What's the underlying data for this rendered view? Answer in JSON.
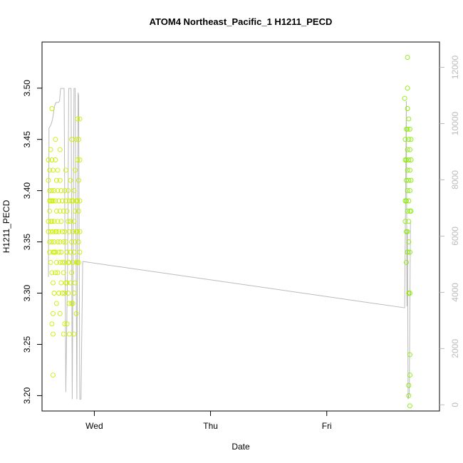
{
  "chart_data": {
    "type": "scatter",
    "title": "ATOM4 Northeast_Pacific_1 H1211_PECD",
    "xlabel": "Date",
    "ylabel": "H1211_PECD",
    "x_unit": "days since Tuesday 00:00",
    "xlim": [
      1.55,
      4.97
    ],
    "x_ticks": [
      {
        "value": 2,
        "label": "Wed"
      },
      {
        "value": 3,
        "label": "Thu"
      },
      {
        "value": 4,
        "label": "Fri"
      }
    ],
    "ylim": [
      3.185,
      3.545
    ],
    "y_ticks": [
      3.2,
      3.25,
      3.3,
      3.35,
      3.4,
      3.45,
      3.5
    ],
    "y_tick_labels": [
      "3.20",
      "3.25",
      "3.30",
      "3.35",
      "3.40",
      "3.45",
      "3.50"
    ],
    "y2_lim": [
      -220,
      12900
    ],
    "y2_ticks": [
      0,
      2000,
      4000,
      6000,
      8000,
      10000,
      12000
    ],
    "y2_tick_labels": [
      "0",
      "2000",
      "4000",
      "6000",
      "8000",
      "10000",
      "12000"
    ],
    "colors": {
      "group1_points": "#ccee00",
      "group2_points": "#88ee00",
      "altitude_line": "#bbbbbb",
      "frame": "#000000"
    },
    "series": [
      {
        "marker": "open-circle",
        "points": [
          [
            1.605,
            3.43
          ],
          [
            1.605,
            3.41
          ],
          [
            1.605,
            3.37
          ],
          [
            1.605,
            3.36
          ],
          [
            1.615,
            3.42
          ],
          [
            1.615,
            3.4
          ],
          [
            1.615,
            3.39
          ],
          [
            1.615,
            3.38
          ],
          [
            1.615,
            3.35
          ],
          [
            1.615,
            3.34
          ],
          [
            1.625,
            3.44
          ],
          [
            1.625,
            3.39
          ],
          [
            1.625,
            3.37
          ],
          [
            1.625,
            3.36
          ],
          [
            1.625,
            3.33
          ],
          [
            1.635,
            3.48
          ],
          [
            1.635,
            3.43
          ],
          [
            1.635,
            3.4
          ],
          [
            1.635,
            3.39
          ],
          [
            1.635,
            3.37
          ],
          [
            1.635,
            3.35
          ],
          [
            1.635,
            3.32
          ],
          [
            1.635,
            3.27
          ],
          [
            1.645,
            3.42
          ],
          [
            1.645,
            3.39
          ],
          [
            1.645,
            3.36
          ],
          [
            1.645,
            3.34
          ],
          [
            1.645,
            3.31
          ],
          [
            1.645,
            3.28
          ],
          [
            1.645,
            3.26
          ],
          [
            1.645,
            3.22
          ],
          [
            1.655,
            3.4
          ],
          [
            1.655,
            3.37
          ],
          [
            1.655,
            3.35
          ],
          [
            1.655,
            3.34
          ],
          [
            1.655,
            3.3
          ],
          [
            1.665,
            3.45
          ],
          [
            1.665,
            3.43
          ],
          [
            1.665,
            3.39
          ],
          [
            1.665,
            3.36
          ],
          [
            1.665,
            3.34
          ],
          [
            1.665,
            3.32
          ],
          [
            1.675,
            3.41
          ],
          [
            1.675,
            3.38
          ],
          [
            1.675,
            3.36
          ],
          [
            1.675,
            3.33
          ],
          [
            1.675,
            3.29
          ],
          [
            1.685,
            3.42
          ],
          [
            1.685,
            3.4
          ],
          [
            1.685,
            3.37
          ],
          [
            1.685,
            3.35
          ],
          [
            1.685,
            3.32
          ],
          [
            1.695,
            3.39
          ],
          [
            1.695,
            3.36
          ],
          [
            1.695,
            3.34
          ],
          [
            1.695,
            3.3
          ],
          [
            1.705,
            3.44
          ],
          [
            1.705,
            3.41
          ],
          [
            1.705,
            3.38
          ],
          [
            1.705,
            3.35
          ],
          [
            1.705,
            3.33
          ],
          [
            1.705,
            3.28
          ],
          [
            1.715,
            3.4
          ],
          [
            1.715,
            3.37
          ],
          [
            1.715,
            3.34
          ],
          [
            1.715,
            3.31
          ],
          [
            1.725,
            3.39
          ],
          [
            1.725,
            3.36
          ],
          [
            1.725,
            3.33
          ],
          [
            1.725,
            3.3
          ],
          [
            1.735,
            3.38
          ],
          [
            1.735,
            3.35
          ],
          [
            1.735,
            3.32
          ],
          [
            1.735,
            3.26
          ],
          [
            1.745,
            3.4
          ],
          [
            1.745,
            3.36
          ],
          [
            1.745,
            3.33
          ],
          [
            1.745,
            3.3
          ],
          [
            1.745,
            3.27
          ],
          [
            1.755,
            3.42
          ],
          [
            1.755,
            3.39
          ],
          [
            1.755,
            3.35
          ],
          [
            1.755,
            3.31
          ],
          [
            1.765,
            3.38
          ],
          [
            1.765,
            3.34
          ],
          [
            1.765,
            3.31
          ],
          [
            1.765,
            3.27
          ],
          [
            1.775,
            3.4
          ],
          [
            1.775,
            3.37
          ],
          [
            1.775,
            3.33
          ],
          [
            1.775,
            3.3
          ],
          [
            1.785,
            3.39
          ],
          [
            1.785,
            3.36
          ],
          [
            1.785,
            3.33
          ],
          [
            1.785,
            3.29
          ],
          [
            1.785,
            3.26
          ],
          [
            1.795,
            3.41
          ],
          [
            1.795,
            3.37
          ],
          [
            1.795,
            3.34
          ],
          [
            1.795,
            3.31
          ],
          [
            1.805,
            3.45
          ],
          [
            1.805,
            3.39
          ],
          [
            1.805,
            3.35
          ],
          [
            1.805,
            3.32
          ],
          [
            1.805,
            3.29
          ],
          [
            1.815,
            3.39
          ],
          [
            1.815,
            3.36
          ],
          [
            1.815,
            3.33
          ],
          [
            1.815,
            3.29
          ],
          [
            1.825,
            3.4
          ],
          [
            1.825,
            3.37
          ],
          [
            1.825,
            3.34
          ],
          [
            1.825,
            3.3
          ],
          [
            1.825,
            3.26
          ],
          [
            1.835,
            3.42
          ],
          [
            1.835,
            3.38
          ],
          [
            1.835,
            3.35
          ],
          [
            1.835,
            3.31
          ],
          [
            1.845,
            3.45
          ],
          [
            1.845,
            3.39
          ],
          [
            1.845,
            3.36
          ],
          [
            1.845,
            3.33
          ],
          [
            1.845,
            3.28
          ],
          [
            1.855,
            3.47
          ],
          [
            1.855,
            3.43
          ],
          [
            1.855,
            3.39
          ],
          [
            1.855,
            3.36
          ],
          [
            1.855,
            3.33
          ],
          [
            1.865,
            3.45
          ],
          [
            1.865,
            3.41
          ],
          [
            1.865,
            3.38
          ],
          [
            1.865,
            3.35
          ],
          [
            1.865,
            3.33
          ],
          [
            1.875,
            3.47
          ],
          [
            1.875,
            3.43
          ],
          [
            1.875,
            3.39
          ],
          [
            1.875,
            3.36
          ],
          [
            1.875,
            3.34
          ]
        ]
      },
      {
        "marker": "open-circle",
        "points": [
          [
            4.67,
            3.49
          ],
          [
            4.675,
            3.45
          ],
          [
            4.675,
            3.43
          ],
          [
            4.675,
            3.39
          ],
          [
            4.675,
            3.37
          ],
          [
            4.685,
            3.46
          ],
          [
            4.685,
            3.43
          ],
          [
            4.685,
            3.41
          ],
          [
            4.685,
            3.39
          ],
          [
            4.685,
            3.36
          ],
          [
            4.685,
            3.33
          ],
          [
            4.695,
            3.53
          ],
          [
            4.695,
            3.5
          ],
          [
            4.695,
            3.48
          ],
          [
            4.695,
            3.46
          ],
          [
            4.695,
            3.44
          ],
          [
            4.695,
            3.42
          ],
          [
            4.695,
            3.4
          ],
          [
            4.695,
            3.38
          ],
          [
            4.695,
            3.36
          ],
          [
            4.695,
            3.34
          ],
          [
            4.705,
            3.47
          ],
          [
            4.705,
            3.45
          ],
          [
            4.705,
            3.43
          ],
          [
            4.705,
            3.41
          ],
          [
            4.705,
            3.39
          ],
          [
            4.705,
            3.37
          ],
          [
            4.705,
            3.35
          ],
          [
            4.705,
            3.3
          ],
          [
            4.705,
            3.21
          ],
          [
            4.705,
            3.2
          ],
          [
            4.715,
            3.46
          ],
          [
            4.715,
            3.44
          ],
          [
            4.715,
            3.42
          ],
          [
            4.715,
            3.4
          ],
          [
            4.715,
            3.38
          ],
          [
            4.715,
            3.34
          ],
          [
            4.715,
            3.3
          ],
          [
            4.715,
            3.24
          ],
          [
            4.715,
            3.22
          ],
          [
            4.715,
            3.19
          ],
          [
            4.725,
            3.45
          ],
          [
            4.725,
            3.43
          ],
          [
            4.725,
            3.41
          ],
          [
            4.725,
            3.38
          ]
        ]
      },
      {
        "axis": "right",
        "style": "line",
        "points": [
          [
            1.605,
            4550
          ],
          [
            1.61,
            9850
          ],
          [
            1.62,
            9900
          ],
          [
            1.63,
            10000
          ],
          [
            1.64,
            10150
          ],
          [
            1.65,
            10400
          ],
          [
            1.66,
            10650
          ],
          [
            1.67,
            10750
          ],
          [
            1.69,
            10750
          ],
          [
            1.7,
            10800
          ],
          [
            1.71,
            11250
          ],
          [
            1.74,
            11250
          ],
          [
            1.755,
            450
          ],
          [
            1.77,
            5000
          ],
          [
            1.78,
            11250
          ],
          [
            1.8,
            11250
          ],
          [
            1.81,
            200
          ],
          [
            1.825,
            11250
          ],
          [
            1.835,
            11250
          ],
          [
            1.85,
            200
          ],
          [
            1.86,
            11100
          ],
          [
            1.865,
            11000
          ],
          [
            1.875,
            200
          ],
          [
            1.885,
            200
          ],
          [
            1.9,
            5100
          ],
          [
            4.67,
            3450
          ],
          [
            4.685,
            10800
          ],
          [
            4.69,
            3500
          ],
          [
            4.695,
            6200
          ],
          [
            4.7,
            200
          ],
          [
            4.71,
            400
          ],
          [
            4.72,
            6500
          ]
        ]
      }
    ]
  }
}
